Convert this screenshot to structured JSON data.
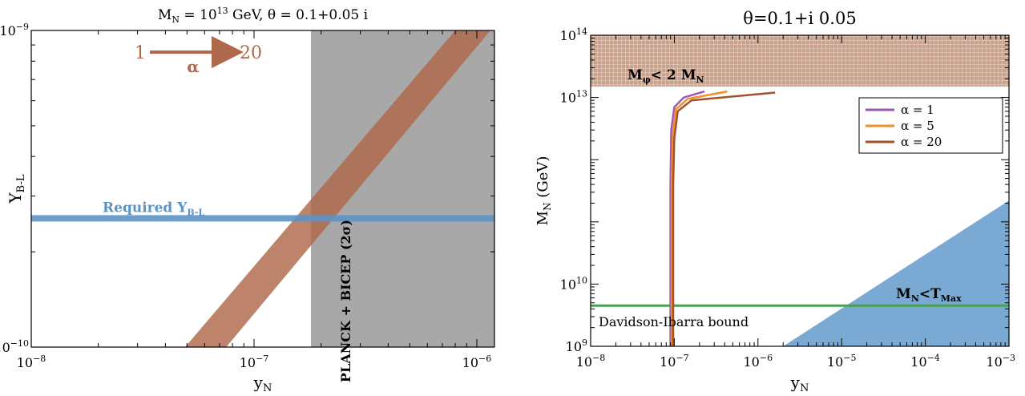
{
  "chart_data": [
    {
      "type": "area",
      "title_main": "M",
      "title_sub": "N",
      "title_rest1": " = 10",
      "title_sup": "13",
      "title_rest2": " GeV, θ = 0.1+0.05 i",
      "xlabel_main": "y",
      "xlabel_sub": "N",
      "ylabel_main": "Y",
      "ylabel_sub": "B-L",
      "xscale": "log",
      "yscale": "log",
      "xlim": [
        1e-08,
        1.2e-06
      ],
      "ylim": [
        1e-10,
        1e-09
      ],
      "x_ticks": [
        {
          "value": 1e-08,
          "base": "10",
          "exp": "−8"
        },
        {
          "value": 1e-07,
          "base": "10",
          "exp": "−7"
        },
        {
          "value": 1e-06,
          "base": "10",
          "exp": "−6"
        }
      ],
      "y_ticks": [
        {
          "value": 1e-10,
          "base": "10",
          "exp": "−10"
        },
        {
          "value": 1e-09,
          "base": "10",
          "exp": "−9"
        }
      ],
      "required_band": {
        "y": 2.55e-10,
        "label_main": "Required Y",
        "label_sub": "B-L",
        "color": "#5b93c7"
      },
      "excluded_region": {
        "x_min": 1.8e-07,
        "label": "PLANCK + BICEP (2σ)",
        "color": "#a8a8a8"
      },
      "alpha_band": {
        "color": "#b0694a",
        "left_edge": [
          [
            4.9e-08,
            1e-10
          ],
          [
            8e-07,
            1e-09
          ]
        ],
        "right_edge": [
          [
            7.5e-08,
            1e-10
          ],
          [
            1.15e-06,
            1e-09
          ]
        ]
      },
      "alpha_annotation": {
        "from": "1",
        "symbol": "α",
        "to": "20",
        "color": "#b0694a"
      }
    },
    {
      "type": "line",
      "title": "θ=0.1+i 0.05",
      "xlabel_main": "y",
      "xlabel_sub": "N",
      "ylabel": "M",
      "ylabel_sub": "N",
      "ylabel_rest": " (GeV)",
      "xscale": "log",
      "yscale": "log",
      "xlim": [
        1e-08,
        0.001
      ],
      "ylim": [
        1000000000.0,
        100000000000000.0
      ],
      "x_ticks": [
        {
          "value": 1e-08,
          "base": "10",
          "exp": "−8"
        },
        {
          "value": 1e-07,
          "base": "10",
          "exp": "−7"
        },
        {
          "value": 1e-06,
          "base": "10",
          "exp": "−6"
        },
        {
          "value": 1e-05,
          "base": "10",
          "exp": "−5"
        },
        {
          "value": 0.0001,
          "base": "10",
          "exp": "−4"
        },
        {
          "value": 0.001,
          "base": "10",
          "exp": "−3"
        }
      ],
      "y_ticks": [
        {
          "value": 1000000000.0,
          "base": "10",
          "exp": "9"
        },
        {
          "value": 10000000000.0,
          "base": "10",
          "exp": "10"
        },
        {
          "value": 10000000000000.0,
          "base": "10",
          "exp": "13"
        },
        {
          "value": 100000000000000.0,
          "base": "10",
          "exp": "14"
        }
      ],
      "hatched_region": {
        "y_min": 15000000000000.0,
        "label_main": "M",
        "label_sub": "φ",
        "label_rest": "< 2 M",
        "label_sub2": "N",
        "color": "#c49a84"
      },
      "tmax_region": {
        "label_main": "M",
        "label_sub": "N",
        "label_rest": "<T",
        "label_sub2": "Max",
        "color": "#7aa9d4",
        "points": [
          [
            2e-06,
            1000000000.0
          ],
          [
            0.001,
            220000000000.0
          ],
          [
            0.001,
            1000000000.0
          ]
        ]
      },
      "davidson_ibarra": {
        "y": 4500000000.0,
        "label": "Davidson-Ibarra bound",
        "color": "#4aa155"
      },
      "legend_position": "top-right",
      "series": [
        {
          "name": "α = 1",
          "color": "#9b59b6",
          "points": [
            [
              9e-08,
              1000000000.0
            ],
            [
              9e-08,
              400000000000.0
            ],
            [
              9.2e-08,
              3000000000000.0
            ],
            [
              1e-07,
              7000000000000.0
            ],
            [
              1.3e-07,
              10000000000000.0
            ],
            [
              2.3e-07,
              12500000000000.0
            ]
          ]
        },
        {
          "name": "α = 5",
          "color": "#f28e2b",
          "points": [
            [
              9.3e-08,
              1000000000.0
            ],
            [
              9.3e-08,
              400000000000.0
            ],
            [
              9.6e-08,
              2500000000000.0
            ],
            [
              1.05e-07,
              6500000000000.0
            ],
            [
              1.45e-07,
              9500000000000.0
            ],
            [
              4.3e-07,
              12500000000000.0
            ]
          ]
        },
        {
          "name": "α = 20",
          "color": "#a0522d",
          "points": [
            [
              9.7e-08,
              1000000000.0
            ],
            [
              9.7e-08,
              400000000000.0
            ],
            [
              1e-07,
              2200000000000.0
            ],
            [
              1.1e-07,
              6000000000000.0
            ],
            [
              1.6e-07,
              9000000000000.0
            ],
            [
              1.6e-06,
              12000000000000.0
            ]
          ]
        }
      ]
    }
  ]
}
